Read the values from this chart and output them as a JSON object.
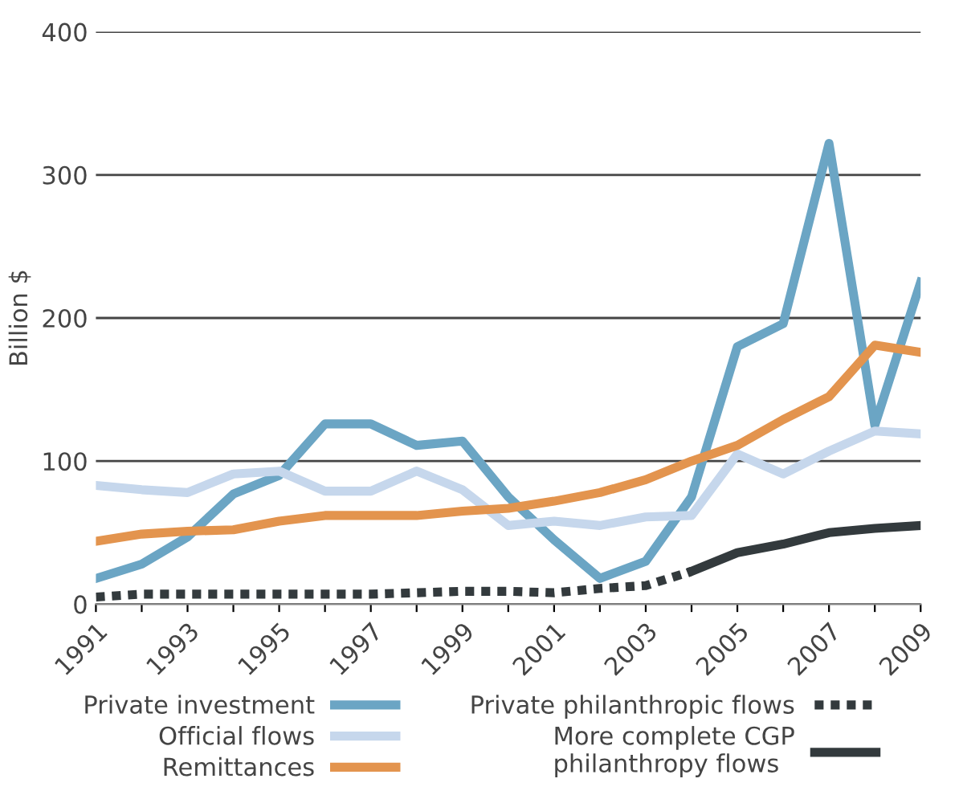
{
  "chart_data": {
    "type": "line",
    "ylabel": "Billion $",
    "x": [
      1991,
      1992,
      1993,
      1994,
      1995,
      1996,
      1997,
      1998,
      1999,
      2000,
      2001,
      2002,
      2003,
      2004,
      2005,
      2006,
      2007,
      2008,
      2009
    ],
    "series": [
      {
        "name": "Private investment",
        "color": "#6ba5c4",
        "values": [
          18,
          28,
          47,
          77,
          90,
          126,
          126,
          111,
          114,
          75,
          45,
          18,
          30,
          75,
          180,
          196,
          322,
          125,
          225
        ]
      },
      {
        "name": "Official flows",
        "color": "#c6d7ec",
        "values": [
          83,
          80,
          78,
          91,
          93,
          79,
          79,
          93,
          80,
          55,
          58,
          55,
          61,
          62,
          105,
          91,
          107,
          121,
          119
        ]
      },
      {
        "name": "Remittances",
        "color": "#e3944e",
        "values": [
          44,
          49,
          51,
          52,
          58,
          62,
          62,
          62,
          65,
          67,
          72,
          78,
          87,
          100,
          111,
          129,
          145,
          181,
          176
        ]
      },
      {
        "name": "Private philanthropic flows",
        "color": "#333a3d",
        "line_style": "dotted",
        "values": [
          5,
          7,
          7,
          7,
          7,
          7,
          7,
          8,
          9,
          9,
          8,
          11,
          13,
          23,
          null,
          null,
          null,
          null,
          null
        ]
      },
      {
        "name": "More complete CGP\nphilanthropy flows",
        "color": "#333a3d",
        "line_style": "solid",
        "values": [
          null,
          null,
          null,
          null,
          null,
          null,
          null,
          null,
          null,
          null,
          null,
          null,
          null,
          23,
          36,
          42,
          50,
          53,
          55
        ]
      }
    ],
    "xlim": [
      1991,
      2009
    ],
    "xticks": [
      1991,
      {
        "value": 1992,
        "label": null
      },
      1993,
      {
        "value": 1994,
        "label": null
      },
      1995,
      {
        "value": 1996,
        "label": null
      },
      1997,
      {
        "value": 1998,
        "label": null
      },
      1999,
      {
        "value": 2000,
        "label": null
      },
      2001,
      {
        "value": 2002,
        "label": null
      },
      2003,
      {
        "value": 2004,
        "label": null
      },
      2005,
      {
        "value": 2006,
        "label": null
      },
      2007,
      {
        "value": 2008,
        "label": null
      },
      2009
    ],
    "ylim": [
      0,
      400
    ],
    "yticks": [
      0,
      100,
      200,
      300,
      400
    ],
    "grid": "y",
    "legend": "bottom",
    "marker": "none"
  }
}
